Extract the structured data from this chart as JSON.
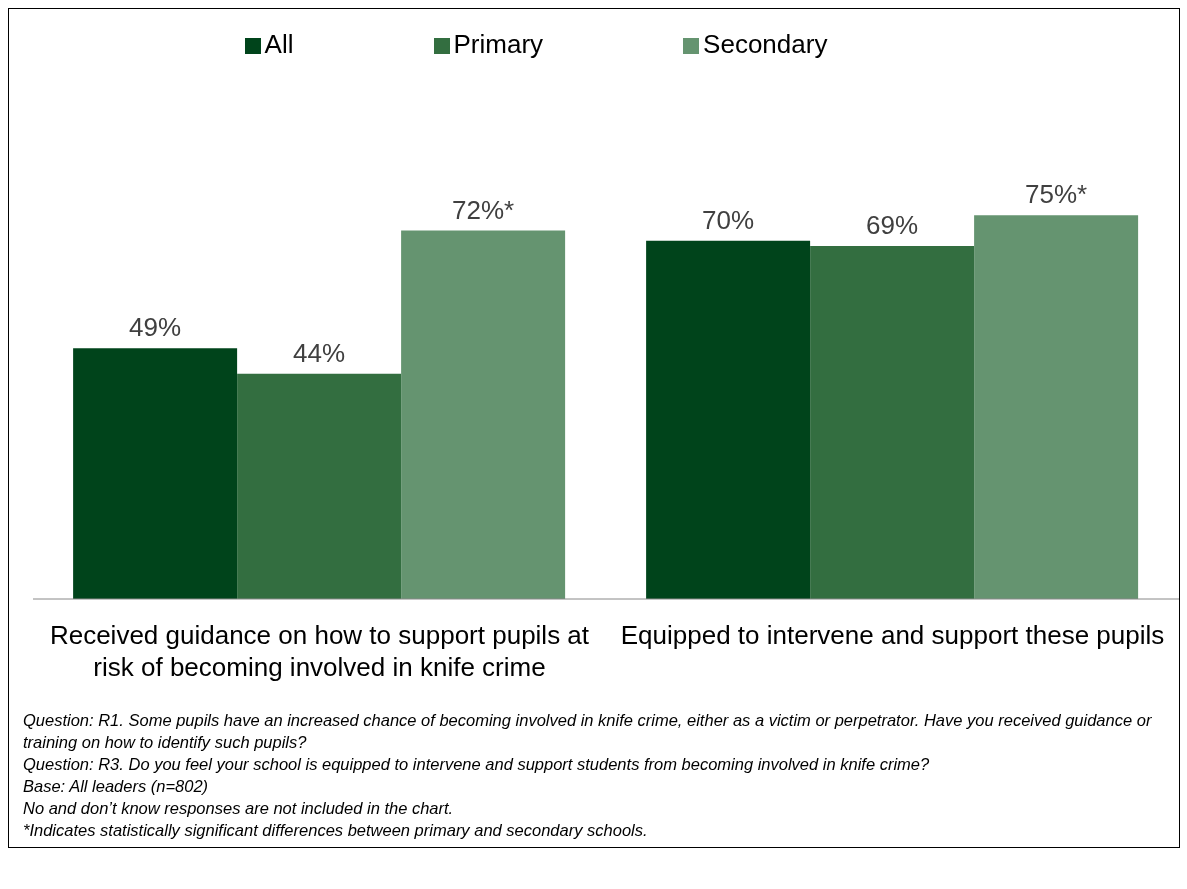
{
  "chart_data": {
    "type": "bar",
    "categories": [
      "Received guidance on how to support pupils at risk of becoming involved in knife crime",
      "Equipped to intervene and support these pupils"
    ],
    "series": [
      {
        "name": "All",
        "color": "#00441b",
        "values": [
          49,
          70
        ],
        "value_labels": [
          "49%",
          "70%"
        ]
      },
      {
        "name": "Primary",
        "color": "#336e40",
        "values": [
          44,
          69
        ],
        "value_labels": [
          "44%",
          "69%"
        ]
      },
      {
        "name": "Secondary",
        "color": "#659470",
        "values": [
          72,
          75
        ],
        "value_labels": [
          "72%*",
          "75%*"
        ]
      }
    ],
    "legend": "top",
    "grid": false,
    "annotations": [
      "Question: R1. Some pupils have an increased chance of becoming involved in knife crime, either as a victim or perpetrator. Have you received guidance or training on how to identify such pupils?",
      "Question: R3. Do you feel your school is equipped to intervene and support students from becoming involved in knife crime?",
      "Base: All leaders (n=802)",
      "No and don’t know responses are not included in the chart.",
      "*Indicates statistically significant differences between primary and secondary schools."
    ]
  }
}
